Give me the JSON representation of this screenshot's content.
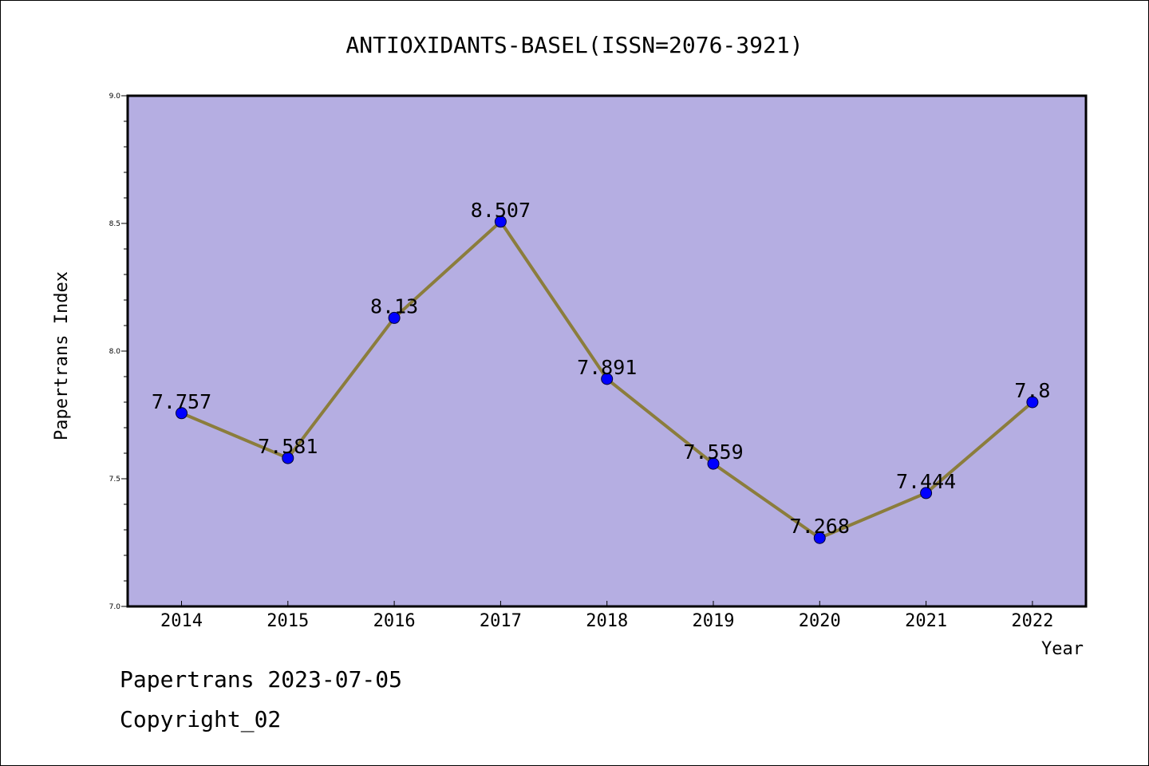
{
  "chart_data": {
    "type": "line",
    "title": "ANTIOXIDANTS-BASEL(ISSN=2076-3921)",
    "xlabel": "Year",
    "ylabel": "Papertrans Index",
    "categories": [
      "2014",
      "2015",
      "2016",
      "2017",
      "2018",
      "2019",
      "2020",
      "2021",
      "2022"
    ],
    "series": [
      {
        "values": [
          7.757,
          7.581,
          8.13,
          8.507,
          7.891,
          7.559,
          7.268,
          7.444,
          7.8
        ],
        "labels": [
          "7.757",
          "7.581",
          "8.13",
          "8.507",
          "7.891",
          "7.559",
          "7.268",
          "7.444",
          "7.8"
        ]
      }
    ],
    "ylim": [
      7.0,
      9.0
    ],
    "yticks": [
      "7.0",
      "7.5",
      "8.0",
      "8.5",
      "9.0"
    ],
    "grid": false,
    "colors": {
      "plot_background": "#b5aee2",
      "line": "#8b7d3c",
      "marker": "#0000ff"
    }
  },
  "footer": {
    "line1": "Papertrans 2023-07-05",
    "line2": "Copyright_02"
  }
}
